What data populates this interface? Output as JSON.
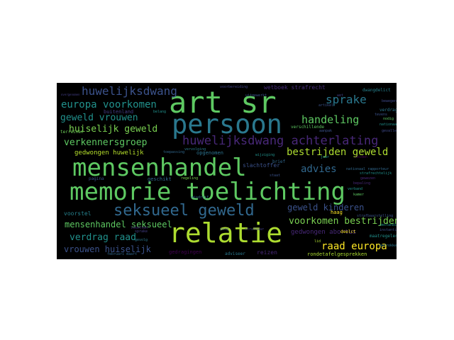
{
  "wordcloud": {
    "words": [
      {
        "text": "art sr",
        "color": "#5ec962"
      },
      {
        "text": "persoon",
        "color": "#2a788e"
      },
      {
        "text": "mensenhandel",
        "color": "#5ec962"
      },
      {
        "text": "memorie toelichting",
        "color": "#5ec962"
      },
      {
        "text": "relatie",
        "color": "#addc30"
      },
      {
        "text": "seksueel geweld",
        "color": "#31688e"
      },
      {
        "text": "huwelijksdwang achterlating",
        "color": "#482878"
      },
      {
        "text": "huwelijksdwang",
        "color": "#3b528b"
      },
      {
        "text": "europa voorkomen",
        "color": "#21918c"
      },
      {
        "text": "sprake",
        "color": "#2a788e"
      },
      {
        "text": "handeling",
        "color": "#5ec962"
      },
      {
        "text": "geweld vrouwen",
        "color": "#21918c"
      },
      {
        "text": "huiselijk geweld",
        "color": "#7ad151"
      },
      {
        "text": "verkennersgroep",
        "color": "#5ec962"
      },
      {
        "text": "bestrijden geweld",
        "color": "#addc30"
      },
      {
        "text": "advies",
        "color": "#31688e"
      },
      {
        "text": "geweld kinderen",
        "color": "#3b528b"
      },
      {
        "text": "voorkomen bestrijden",
        "color": "#7ad151"
      },
      {
        "text": "mensenhandel seksueel",
        "color": "#5ec962"
      },
      {
        "text": "verdrag raad",
        "color": "#21918c"
      },
      {
        "text": "raad europa",
        "color": "#fde725"
      },
      {
        "text": "vrouwen huiselijk",
        "color": "#3b528b"
      },
      {
        "text": "gedwongen abortus",
        "color": "#482878"
      },
      {
        "text": "gedwongen huwelijk",
        "color": "#b5de2b"
      },
      {
        "text": "wetboek strafrecht",
        "color": "#472d7b"
      },
      {
        "text": "buitenland",
        "color": "#433e85"
      },
      {
        "text": "terreinen",
        "color": "#6ece58"
      },
      {
        "text": "verschillende",
        "color": "#5ec962"
      },
      {
        "text": "geschikt",
        "color": "#31688e"
      },
      {
        "text": "opgenomen",
        "color": "#2c728e"
      },
      {
        "text": "slachtoffer",
        "color": "#3b528b"
      },
      {
        "text": "voorstel",
        "color": "#26828e"
      },
      {
        "text": "haag",
        "color": "#fde725"
      },
      {
        "text": "deelct",
        "color": "#fde725"
      },
      {
        "text": "reizen",
        "color": "#482878"
      },
      {
        "text": "rondetafelgesprekken",
        "color": "#addc30"
      },
      {
        "text": "gedragingen",
        "color": "#440154"
      },
      {
        "text": "adviseer",
        "color": "#2a788e"
      },
      {
        "text": "maatregelen",
        "color": "#21918c"
      },
      {
        "text": "dwangdelict",
        "color": "#26828e"
      },
      {
        "text": "verdrag",
        "color": "#2a788e"
      },
      {
        "text": "bewegen",
        "color": "#3e4989"
      },
      {
        "text": "artikel",
        "color": "#3b528b"
      },
      {
        "text": "overgenomen",
        "color": "#433e85"
      },
      {
        "text": "strafrechtelijk",
        "color": "#21918c"
      },
      {
        "text": "pagina",
        "color": "#3b528b"
      },
      {
        "text": "gewezen",
        "color": "#482878"
      },
      {
        "text": "loketten",
        "color": "#472d7b"
      },
      {
        "text": "tevens",
        "color": "#3b528b"
      },
      {
        "text": "leiden",
        "color": "#440154"
      },
      {
        "text": "februari maart",
        "color": "#31688e"
      },
      {
        "text": "nationaal rapporteur",
        "color": "#31688e"
      },
      {
        "text": "nationaal",
        "color": "#21918c"
      },
      {
        "text": "strafbaarstelling",
        "color": "#3b528b"
      },
      {
        "text": "gevallen",
        "color": "#3e4989"
      },
      {
        "text": "nodig",
        "color": "#5ec962"
      },
      {
        "text": "sprake",
        "color": "#433e85"
      },
      {
        "text": "belang",
        "color": "#21918c"
      },
      {
        "text": "lid",
        "color": "#addc30"
      },
      {
        "text": "brief",
        "color": "#31688e"
      },
      {
        "text": "voorbereiding",
        "color": "#414487"
      },
      {
        "text": "uitgewerkt",
        "color": "#3b528b"
      },
      {
        "text": "vervolging",
        "color": "#2a788e"
      },
      {
        "text": "wijziging",
        "color": "#21918c"
      },
      {
        "text": "aanpak",
        "color": "#3b528b"
      },
      {
        "text": "toepassing",
        "color": "#31688e"
      },
      {
        "text": "bepaling",
        "color": "#482878"
      },
      {
        "text": "verband",
        "color": "#21918c"
      },
      {
        "text": "kamer",
        "color": "#5ec962"
      },
      {
        "text": "zorg",
        "color": "#3b528b"
      },
      {
        "text": "strafbaar",
        "color": "#433e85"
      },
      {
        "text": "gevolg",
        "color": "#2a788e"
      },
      {
        "text": "omstandigheden",
        "color": "#21918c"
      },
      {
        "text": "instanties",
        "color": "#3b528b"
      },
      {
        "text": "betrokken",
        "color": "#2a788e"
      },
      {
        "text": "regeling",
        "color": "#7ad151"
      },
      {
        "text": "misdrijf",
        "color": "#31688e"
      },
      {
        "text": "wet",
        "color": "#433e85"
      },
      {
        "text": "staat",
        "color": "#3b528b"
      },
      {
        "text": "jaar",
        "color": "#21918c"
      }
    ]
  }
}
